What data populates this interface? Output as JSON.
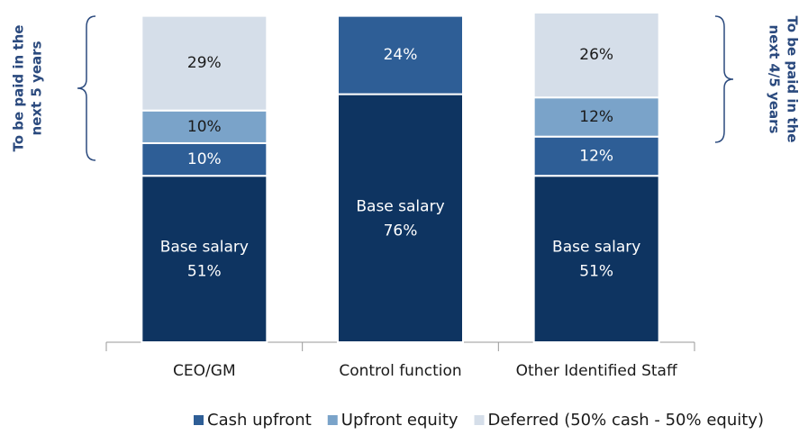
{
  "chart_data": {
    "type": "stacked_bar",
    "categories": [
      "CEO/GM",
      "Control function",
      "Other Identified Staff"
    ],
    "series": [
      {
        "name": "Base salary",
        "color": "#0e3461",
        "values": [
          51,
          76,
          51
        ],
        "value_labels": [
          "51%",
          "76%",
          "51%"
        ]
      },
      {
        "name": "Cash upfront",
        "color": "#2e5e96",
        "values": [
          10,
          24,
          12
        ],
        "value_labels": [
          "10%",
          "24%",
          "12%"
        ]
      },
      {
        "name": "Upfront equity",
        "color": "#7aa3c9",
        "values": [
          10,
          null,
          12
        ],
        "value_labels": [
          "10%",
          null,
          "12%"
        ]
      },
      {
        "name": "Deferred (50% cash - 50% equity)",
        "color": "#d5dee9",
        "values": [
          29,
          null,
          26
        ],
        "value_labels": [
          "29%",
          null,
          "26%"
        ]
      }
    ],
    "annotations": [
      {
        "lines": [
          "To be paid in the",
          "next 5 years"
        ]
      },
      {
        "lines": [
          "To be paid in the",
          "next 4/5 years"
        ]
      }
    ]
  }
}
